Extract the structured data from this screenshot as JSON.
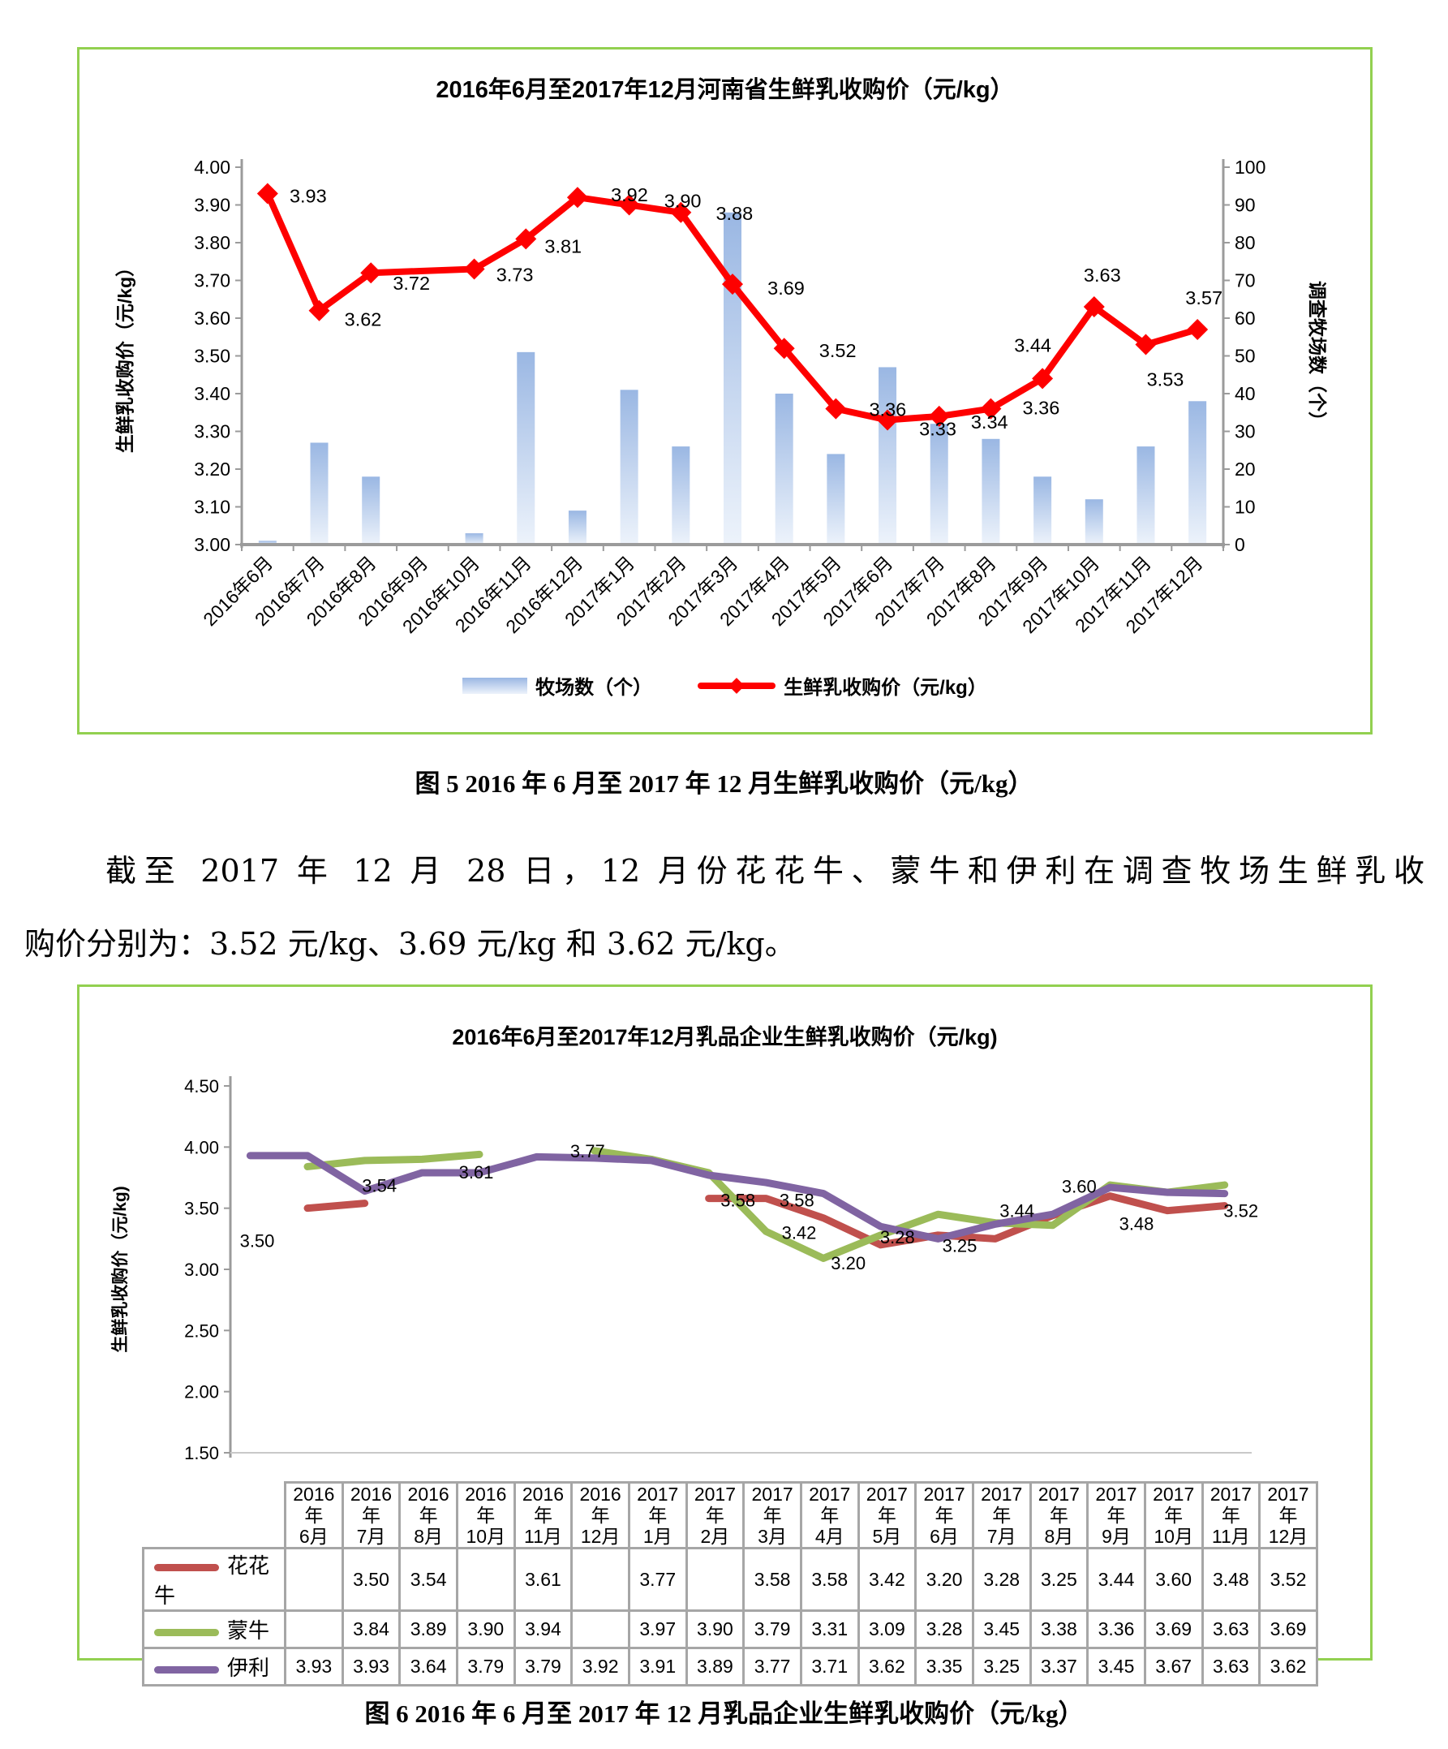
{
  "figure5_caption": "图 5 2016 年 6 月至 2017 年 12 月生鲜乳收购价（元/kg）",
  "figure6_caption": "图 6 2016 年 6 月至 2017 年 12 月乳品企业生鲜乳收购价（元/kg）",
  "paragraph": {
    "line1": "截至 2017 年 12 月 28 日，12 月份花花牛、蒙牛和伊利在调查牧场生鲜乳收",
    "line2": "购价分别为：3.52 元/kg、3.69 元/kg 和 3.62 元/kg。"
  },
  "chart_data": [
    {
      "type": "combo-bar-line",
      "title": "2016年6月至2017年12月河南省生鲜乳收购价（元/kg）",
      "categories": [
        "2016年6月",
        "2016年7月",
        "2016年8月",
        "2016年9月",
        "2016年10月",
        "2016年11月",
        "2016年12月",
        "2017年1月",
        "2017年2月",
        "2017年3月",
        "2017年4月",
        "2017年5月",
        "2017年6月",
        "2017年7月",
        "2017年8月",
        "2017年9月",
        "2017年10月",
        "2017年11月",
        "2017年12月"
      ],
      "y_left": {
        "title": "生鲜乳收购价（元/kg）",
        "min": 3.0,
        "max": 4.0,
        "step": 0.1
      },
      "y_right": {
        "title": "调查牧场数（个）",
        "min": 0,
        "max": 100,
        "step": 10
      },
      "grid": false,
      "legend_position": "bottom",
      "series": [
        {
          "name": "牧场数（个）",
          "type": "bar",
          "axis": "right",
          "color_top": "#9ab7e3",
          "color_bottom": "#edf3fb",
          "values": [
            1,
            27,
            18,
            0,
            3,
            51,
            9,
            41,
            26,
            88,
            40,
            24,
            47,
            32,
            28,
            18,
            12,
            26,
            38
          ]
        },
        {
          "name": "生鲜乳收购价（元/kg）",
          "type": "line",
          "axis": "left",
          "color": "#fe0000",
          "values": [
            3.93,
            3.62,
            3.72,
            null,
            3.73,
            3.81,
            3.92,
            3.9,
            3.88,
            3.69,
            3.52,
            3.36,
            3.33,
            3.34,
            3.36,
            3.44,
            3.63,
            3.53,
            3.57
          ]
        }
      ]
    },
    {
      "type": "line",
      "title": "2016年6月至2017年12月乳品企业生鲜乳收购价（元/kg)",
      "categories": [
        "2016年6月",
        "2016年7月",
        "2016年8月",
        "2016年10月",
        "2016年11月",
        "2016年12月",
        "2017年1月",
        "2017年2月",
        "2017年3月",
        "2017年4月",
        "2017年5月",
        "2017年6月",
        "2017年7月",
        "2017年8月",
        "2017年9月",
        "2017年10月",
        "2017年11月",
        "2017年12月"
      ],
      "y": {
        "title": "生鲜乳收购价（元/kg)",
        "min": 1.5,
        "max": 4.5,
        "step": 0.5
      },
      "grid": false,
      "data_table": true,
      "labeled_series": "花花牛",
      "series": [
        {
          "name": "花花牛",
          "color": "#c0504d",
          "values": [
            null,
            3.5,
            3.54,
            null,
            3.61,
            null,
            3.77,
            null,
            3.58,
            3.58,
            3.42,
            3.2,
            3.28,
            3.25,
            3.44,
            3.6,
            3.48,
            3.52
          ]
        },
        {
          "name": "蒙牛",
          "color": "#9bbb59",
          "values": [
            null,
            3.84,
            3.89,
            3.9,
            3.94,
            null,
            3.97,
            3.9,
            3.79,
            3.31,
            3.09,
            3.28,
            3.45,
            3.38,
            3.36,
            3.69,
            3.63,
            3.69
          ]
        },
        {
          "name": "伊利",
          "color": "#8064a2",
          "values": [
            3.93,
            3.93,
            3.64,
            3.79,
            3.79,
            3.92,
            3.91,
            3.89,
            3.77,
            3.71,
            3.62,
            3.35,
            3.25,
            3.37,
            3.45,
            3.67,
            3.63,
            3.62
          ]
        }
      ]
    }
  ]
}
